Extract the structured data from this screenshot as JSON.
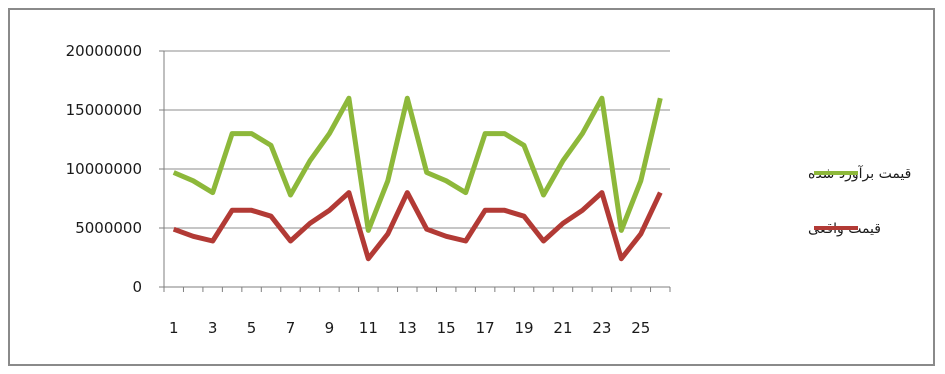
{
  "chart_data": {
    "type": "line",
    "title": "",
    "xlabel": "",
    "ylabel": "",
    "x": [
      1,
      2,
      3,
      4,
      5,
      6,
      7,
      8,
      9,
      10,
      11,
      12,
      13,
      14,
      15,
      16,
      17,
      18,
      19,
      20,
      21,
      22,
      23,
      24,
      25,
      26
    ],
    "x_tick_labels": [
      "1",
      "3",
      "5",
      "7",
      "9",
      "11",
      "13",
      "15",
      "17",
      "19",
      "21",
      "23",
      "25"
    ],
    "y_tick_labels": [
      "20000000",
      "15000000",
      "10000000",
      "5000000",
      "0"
    ],
    "ylim": [
      0,
      20000000
    ],
    "grid": "horizontal",
    "legend_position": "right",
    "series": [
      {
        "name": "قیمت برآورد شده",
        "color": "#8db83a",
        "values": [
          9700000,
          9000000,
          8000000,
          13000000,
          13000000,
          12000000,
          7800000,
          10700000,
          13000000,
          16000000,
          4800000,
          9000000,
          16000000,
          9700000,
          9000000,
          8000000,
          13000000,
          13000000,
          12000000,
          7800000,
          10700000,
          13000000,
          16000000,
          4800000,
          9000000,
          16000000
        ]
      },
      {
        "name": "قیمت واقعی",
        "color": "#b23a35",
        "values": [
          4900000,
          4300000,
          3900000,
          6500000,
          6500000,
          6000000,
          3900000,
          5400000,
          6500000,
          8000000,
          2400000,
          4500000,
          8000000,
          4900000,
          4300000,
          3900000,
          6500000,
          6500000,
          6000000,
          3900000,
          5400000,
          6500000,
          8000000,
          2400000,
          4500000,
          8000000
        ]
      }
    ]
  }
}
